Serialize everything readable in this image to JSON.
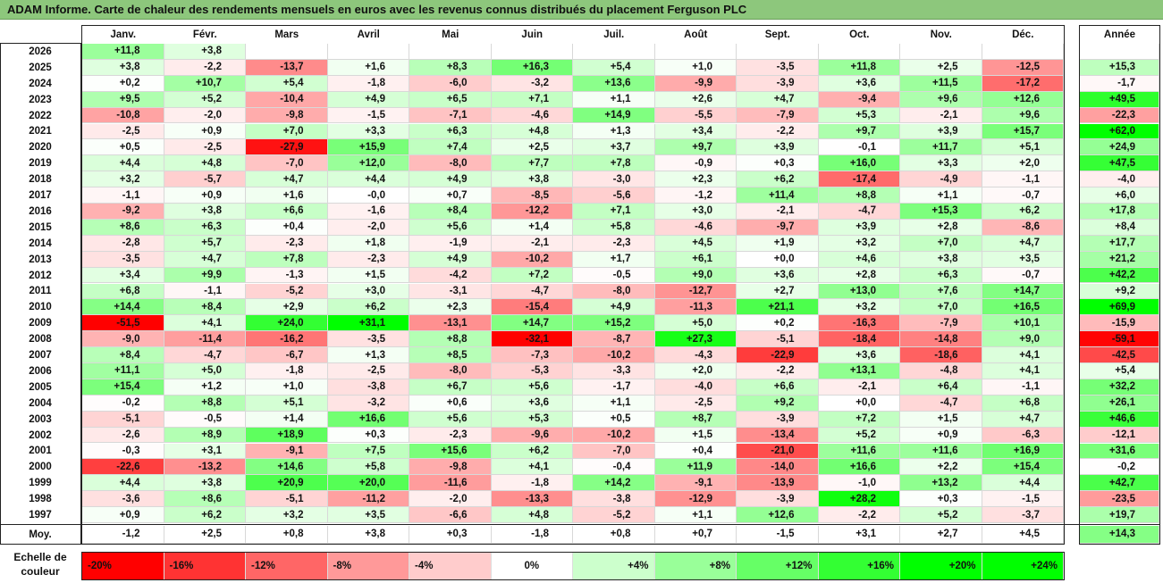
{
  "title": "ADAM Informe. Carte de chaleur des rendements mensuels en euros avec les revenus connus distribués du placement Ferguson PLC",
  "chart_data": {
    "type": "heatmap",
    "columns": [
      "Janv.",
      "Févr.",
      "Mars",
      "Avril",
      "Mai",
      "Juin",
      "Juil.",
      "Août",
      "Sept.",
      "Oct.",
      "Nov.",
      "Déc."
    ],
    "year_header": "Année",
    "rows": [
      {
        "year": "2026",
        "m": [
          "+11,8",
          "+3,8",
          "",
          "",
          "",
          "",
          "",
          "",
          "",
          "",
          "",
          ""
        ],
        "y": ""
      },
      {
        "year": "2025",
        "m": [
          "+3,8",
          "-2,2",
          "-13,7",
          "+1,6",
          "+8,3",
          "+16,3",
          "+5,4",
          "+1,0",
          "-3,5",
          "+11,8",
          "+2,5",
          "-12,5"
        ],
        "y": "+15,3"
      },
      {
        "year": "2024",
        "m": [
          "+0,2",
          "+10,7",
          "+5,4",
          "-1,8",
          "-6,0",
          "-3,2",
          "+13,6",
          "-9,9",
          "-3,9",
          "+3,6",
          "+11,5",
          "-17,2"
        ],
        "y": "-1,7"
      },
      {
        "year": "2023",
        "m": [
          "+9,5",
          "+5,2",
          "-10,4",
          "+4,9",
          "+6,5",
          "+7,1",
          "+1,1",
          "+2,6",
          "+4,7",
          "-9,4",
          "+9,6",
          "+12,6"
        ],
        "y": "+49,5"
      },
      {
        "year": "2022",
        "m": [
          "-10,8",
          "-2,0",
          "-9,8",
          "-1,5",
          "-7,1",
          "-4,6",
          "+14,9",
          "-5,5",
          "-7,9",
          "+5,3",
          "-2,1",
          "+9,6"
        ],
        "y": "-22,3"
      },
      {
        "year": "2021",
        "m": [
          "-2,5",
          "+0,9",
          "+7,0",
          "+3,3",
          "+6,3",
          "+4,8",
          "+1,3",
          "+3,4",
          "-2,2",
          "+9,7",
          "+3,9",
          "+15,7"
        ],
        "y": "+62,0"
      },
      {
        "year": "2020",
        "m": [
          "+0,5",
          "-2,5",
          "-27,9",
          "+15,9",
          "+7,4",
          "+2,5",
          "+3,7",
          "+9,7",
          "+3,9",
          "-0,1",
          "+11,7",
          "+5,1"
        ],
        "y": "+24,9"
      },
      {
        "year": "2019",
        "m": [
          "+4,4",
          "+4,8",
          "-7,0",
          "+12,0",
          "-8,0",
          "+7,7",
          "+7,8",
          "-0,9",
          "+0,3",
          "+16,0",
          "+3,3",
          "+2,0"
        ],
        "y": "+47,5"
      },
      {
        "year": "2018",
        "m": [
          "+3,2",
          "-5,7",
          "+4,7",
          "+4,4",
          "+4,9",
          "+3,8",
          "-3,0",
          "+2,3",
          "+6,2",
          "-17,4",
          "-4,9",
          "-1,1"
        ],
        "y": "-4,0"
      },
      {
        "year": "2017",
        "m": [
          "-1,1",
          "+0,9",
          "+1,6",
          "-0,0",
          "+0,7",
          "-8,5",
          "-5,6",
          "-1,2",
          "+11,4",
          "+8,8",
          "+1,1",
          "-0,7"
        ],
        "y": "+6,0"
      },
      {
        "year": "2016",
        "m": [
          "-9,2",
          "+3,8",
          "+6,6",
          "-1,6",
          "+8,4",
          "-12,2",
          "+7,1",
          "+3,0",
          "-2,1",
          "-4,7",
          "+15,3",
          "+6,2"
        ],
        "y": "+17,8"
      },
      {
        "year": "2015",
        "m": [
          "+8,6",
          "+6,3",
          "+0,4",
          "-2,0",
          "+5,6",
          "+1,4",
          "+5,8",
          "-4,6",
          "-9,7",
          "+3,9",
          "+2,8",
          "-8,6"
        ],
        "y": "+8,4"
      },
      {
        "year": "2014",
        "m": [
          "-2,8",
          "+5,7",
          "-2,3",
          "+1,8",
          "-1,9",
          "-2,1",
          "-2,3",
          "+4,5",
          "+1,9",
          "+3,2",
          "+7,0",
          "+4,7"
        ],
        "y": "+17,7"
      },
      {
        "year": "2013",
        "m": [
          "-3,5",
          "+4,7",
          "+7,8",
          "-2,3",
          "+4,9",
          "-10,2",
          "+1,7",
          "+6,1",
          "+0,0",
          "+4,6",
          "+3,8",
          "+3,5"
        ],
        "y": "+21,2"
      },
      {
        "year": "2012",
        "m": [
          "+3,4",
          "+9,9",
          "-1,3",
          "+1,5",
          "-4,2",
          "+7,2",
          "-0,5",
          "+9,0",
          "+3,6",
          "+2,8",
          "+6,3",
          "-0,7"
        ],
        "y": "+42,2"
      },
      {
        "year": "2011",
        "m": [
          "+6,8",
          "-1,1",
          "-5,2",
          "+3,0",
          "-3,1",
          "-4,7",
          "-8,0",
          "-12,7",
          "+2,7",
          "+13,0",
          "+7,6",
          "+14,7"
        ],
        "y": "+9,2"
      },
      {
        "year": "2010",
        "m": [
          "+14,4",
          "+8,4",
          "+2,9",
          "+6,2",
          "+2,3",
          "-15,4",
          "+4,9",
          "-11,3",
          "+21,1",
          "+3,2",
          "+7,0",
          "+16,5"
        ],
        "y": "+69,9"
      },
      {
        "year": "2009",
        "m": [
          "-51,5",
          "+4,1",
          "+24,0",
          "+31,1",
          "-13,1",
          "+14,7",
          "+15,2",
          "+5,0",
          "+0,2",
          "-16,3",
          "-7,9",
          "+10,1"
        ],
        "y": "-15,9"
      },
      {
        "year": "2008",
        "m": [
          "-9,0",
          "-11,4",
          "-16,2",
          "-3,5",
          "+8,8",
          "-32,1",
          "-8,7",
          "+27,3",
          "-5,1",
          "-18,4",
          "-14,8",
          "+9,0"
        ],
        "y": "-59,1"
      },
      {
        "year": "2007",
        "m": [
          "+8,4",
          "-4,7",
          "-6,7",
          "+1,3",
          "+8,5",
          "-7,3",
          "-10,2",
          "-4,3",
          "-22,9",
          "+3,6",
          "-18,6",
          "+4,1"
        ],
        "y": "-42,5"
      },
      {
        "year": "2006",
        "m": [
          "+11,1",
          "+5,0",
          "-1,8",
          "-2,5",
          "-8,0",
          "-5,3",
          "-3,3",
          "+2,0",
          "-2,2",
          "+13,1",
          "-4,8",
          "+4,1"
        ],
        "y": "+5,4"
      },
      {
        "year": "2005",
        "m": [
          "+15,4",
          "+1,2",
          "+1,0",
          "-3,8",
          "+6,7",
          "+5,6",
          "-1,7",
          "-4,0",
          "+6,6",
          "-2,1",
          "+6,4",
          "-1,1"
        ],
        "y": "+32,2"
      },
      {
        "year": "2004",
        "m": [
          "-0,2",
          "+8,8",
          "+5,1",
          "-3,2",
          "+0,6",
          "+3,6",
          "+1,1",
          "-2,5",
          "+9,2",
          "+0,0",
          "-4,7",
          "+6,8"
        ],
        "y": "+26,1"
      },
      {
        "year": "2003",
        "m": [
          "-5,1",
          "-0,5",
          "+1,4",
          "+16,6",
          "+5,6",
          "+5,3",
          "+0,5",
          "+8,7",
          "-3,9",
          "+7,2",
          "+1,5",
          "+4,7"
        ],
        "y": "+46,6"
      },
      {
        "year": "2002",
        "m": [
          "-2,6",
          "+8,9",
          "+18,9",
          "+0,3",
          "-2,3",
          "-9,6",
          "-10,2",
          "+1,5",
          "-13,4",
          "+5,2",
          "+0,9",
          "-6,3"
        ],
        "y": "-12,1"
      },
      {
        "year": "2001",
        "m": [
          "-0,3",
          "+3,1",
          "-9,1",
          "+7,5",
          "+15,6",
          "+6,2",
          "-7,0",
          "+0,4",
          "-21,0",
          "+11,6",
          "+11,6",
          "+16,9"
        ],
        "y": "+31,6"
      },
      {
        "year": "2000",
        "m": [
          "-22,6",
          "-13,2",
          "+14,6",
          "+5,8",
          "-9,8",
          "+4,1",
          "-0,4",
          "+11,9",
          "-14,0",
          "+16,6",
          "+2,2",
          "+15,4"
        ],
        "y": "-0,2"
      },
      {
        "year": "1999",
        "m": [
          "+4,4",
          "+3,8",
          "+20,9",
          "+20,0",
          "-11,6",
          "-1,8",
          "+14,2",
          "-9,1",
          "-13,9",
          "-1,0",
          "+13,2",
          "+4,4"
        ],
        "y": "+42,7"
      },
      {
        "year": "1998",
        "m": [
          "-3,6",
          "+8,6",
          "-5,1",
          "-11,2",
          "-2,0",
          "-13,3",
          "-3,8",
          "-12,9",
          "-3,9",
          "+28,2",
          "+0,3",
          "-1,5"
        ],
        "y": "-23,5"
      },
      {
        "year": "1997",
        "m": [
          "+0,9",
          "+6,2",
          "+3,2",
          "+3,5",
          "-6,6",
          "+4,8",
          "-5,2",
          "+1,1",
          "+12,6",
          "-2,2",
          "+5,2",
          "-3,7"
        ],
        "y": "+19,7"
      }
    ],
    "average": {
      "label": "Moy.",
      "m": [
        "-1,2",
        "+2,5",
        "+0,8",
        "+3,8",
        "+0,3",
        "-1,8",
        "+0,8",
        "+0,7",
        "-1,5",
        "+3,1",
        "+2,7",
        "+4,5"
      ],
      "y": "+14,3"
    },
    "legend": {
      "label_line1": "Echelle de",
      "label_line2": "couleur",
      "steps": [
        "-20%",
        "-16%",
        "-12%",
        "-8%",
        "-4%",
        "0%",
        "+4%",
        "+8%",
        "+12%",
        "+16%",
        "+20%",
        "+24%"
      ],
      "step_values": [
        -20,
        -16,
        -12,
        -8,
        -4,
        0,
        4,
        8,
        12,
        16,
        20,
        24
      ]
    },
    "colors": {
      "negative_max": "#ff0000",
      "neutral": "#ffffff",
      "positive_max": "#00ff00",
      "title_bar": "#8dc77c"
    }
  }
}
